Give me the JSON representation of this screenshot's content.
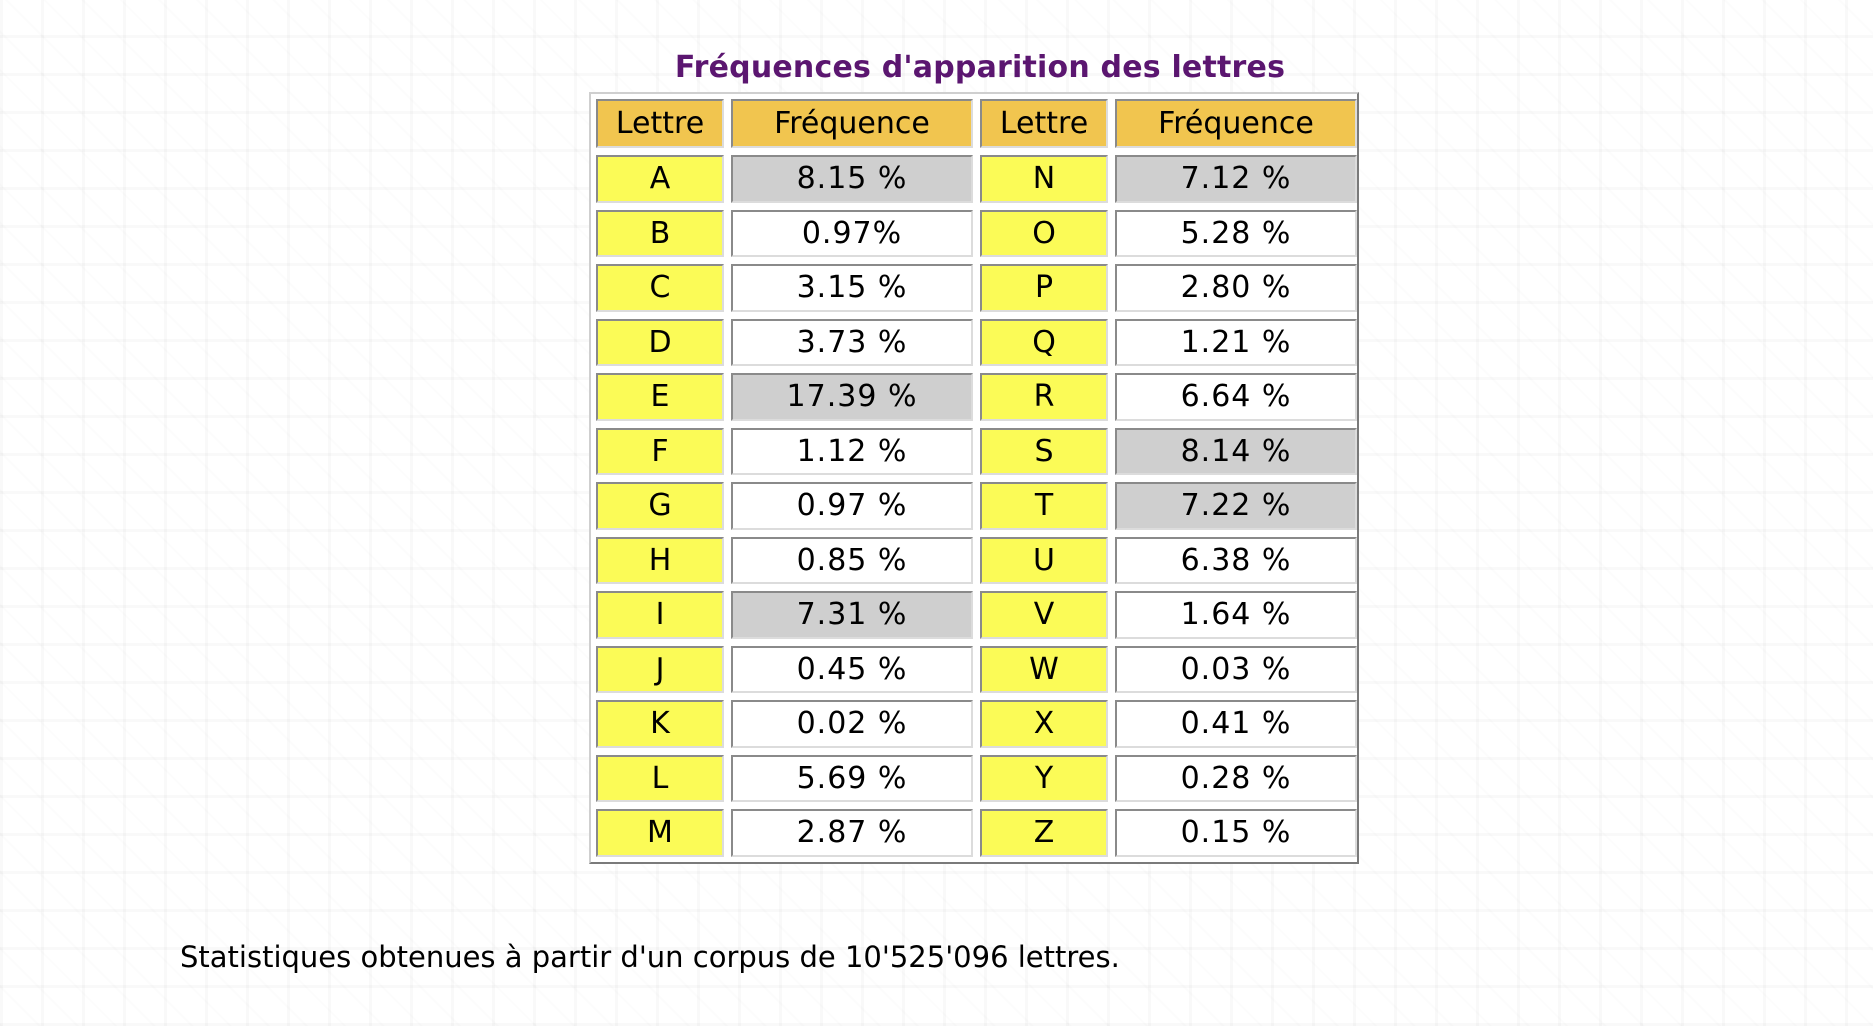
{
  "title": "Fréquences d'apparition des lettres",
  "headers": {
    "letter": "Lettre",
    "frequency": "Fréquence"
  },
  "rows": [
    {
      "l1": "A",
      "f1": "8.15 %",
      "h1": true,
      "l2": "N",
      "f2": "7.12 %",
      "h2": true
    },
    {
      "l1": "B",
      "f1": "0.97%",
      "h1": false,
      "l2": "O",
      "f2": "5.28 %",
      "h2": false
    },
    {
      "l1": "C",
      "f1": "3.15 %",
      "h1": false,
      "l2": "P",
      "f2": "2.80 %",
      "h2": false
    },
    {
      "l1": "D",
      "f1": "3.73 %",
      "h1": false,
      "l2": "Q",
      "f2": "1.21 %",
      "h2": false
    },
    {
      "l1": "E",
      "f1": "17.39 %",
      "h1": true,
      "l2": "R",
      "f2": "6.64 %",
      "h2": false
    },
    {
      "l1": "F",
      "f1": "1.12 %",
      "h1": false,
      "l2": "S",
      "f2": "8.14 %",
      "h2": true
    },
    {
      "l1": "G",
      "f1": "0.97 %",
      "h1": false,
      "l2": "T",
      "f2": "7.22 %",
      "h2": true
    },
    {
      "l1": "H",
      "f1": "0.85 %",
      "h1": false,
      "l2": "U",
      "f2": "6.38 %",
      "h2": false
    },
    {
      "l1": "I",
      "f1": "7.31 %",
      "h1": true,
      "l2": "V",
      "f2": "1.64 %",
      "h2": false
    },
    {
      "l1": "J",
      "f1": "0.45 %",
      "h1": false,
      "l2": "W",
      "f2": "0.03 %",
      "h2": false
    },
    {
      "l1": "K",
      "f1": "0.02 %",
      "h1": false,
      "l2": "X",
      "f2": "0.41 %",
      "h2": false
    },
    {
      "l1": "L",
      "f1": "5.69 %",
      "h1": false,
      "l2": "Y",
      "f2": "0.28 %",
      "h2": false
    },
    {
      "l1": "M",
      "f1": "2.87 %",
      "h1": false,
      "l2": "Z",
      "f2": "0.15 %",
      "h2": false
    }
  ],
  "footnote": "Statistiques obtenues à partir d'un corpus de 10'525'096 lettres.",
  "colors": {
    "title": "#5b1670",
    "header_bg": "#f1c54f",
    "letter_bg": "#fbfb57",
    "highlight_bg": "#cfcfcf"
  }
}
